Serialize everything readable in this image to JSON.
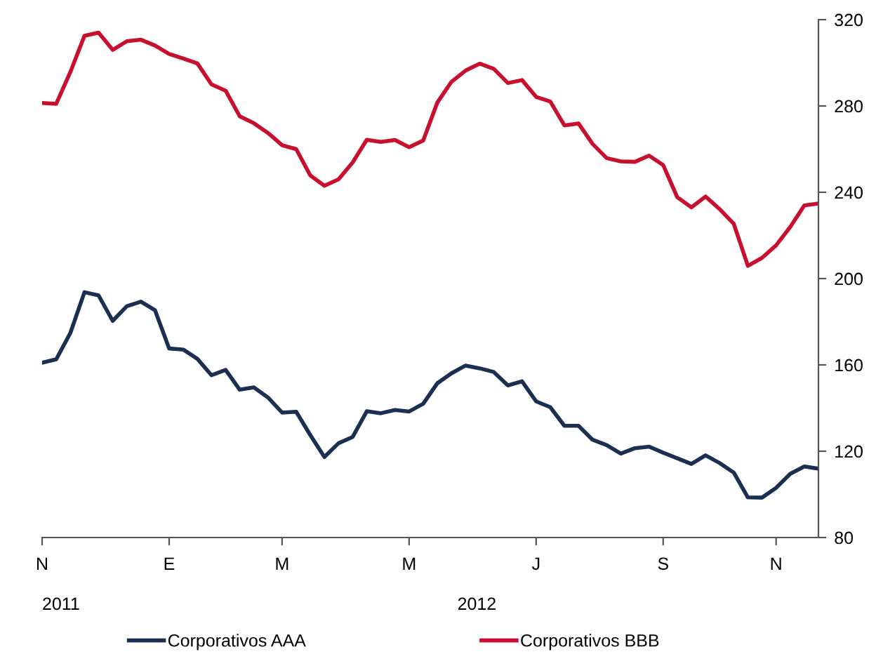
{
  "chart_data": {
    "type": "line",
    "annotations": [
      "2011",
      "2012"
    ],
    "categories": [
      "N",
      null,
      null,
      null,
      null,
      null,
      null,
      null,
      null,
      "E",
      null,
      null,
      null,
      null,
      null,
      null,
      null,
      "M",
      null,
      null,
      null,
      null,
      null,
      null,
      null,
      null,
      "M",
      null,
      null,
      null,
      null,
      null,
      null,
      null,
      null,
      "J",
      null,
      null,
      null,
      null,
      null,
      null,
      null,
      null,
      "S",
      null,
      null,
      null,
      null,
      null,
      null,
      null,
      "N",
      null,
      null,
      null
    ],
    "series": [
      {
        "name": "Corporativos AAA",
        "color": "#1b2f52",
        "values": [
          161,
          162.6,
          174.8,
          193.7,
          192.2,
          180.4,
          187.2,
          189.3,
          185.3,
          167.6,
          167.1,
          162.8,
          155.2,
          157.7,
          148.5,
          149.6,
          144.9,
          137.9,
          138.3,
          127.5,
          117.3,
          123.7,
          126.6,
          138.5,
          137.6,
          139.1,
          138.4,
          142,
          151.5,
          156.1,
          159.7,
          158.4,
          156.7,
          150.5,
          152.4,
          143.1,
          140.4,
          131.8,
          131.8,
          125.3,
          122.8,
          118.9,
          121.4,
          122.1,
          119.3,
          116.7,
          114.1,
          118.1,
          114.5,
          110.1,
          98.6,
          98.5,
          103,
          109.5,
          112.9,
          111.9
        ]
      },
      {
        "name": "Corporativos BBB",
        "color": "#c8102e",
        "values": [
          281.4,
          281,
          295.7,
          312.5,
          314,
          306,
          310,
          310.7,
          308,
          304.1,
          302,
          299.7,
          290,
          287.1,
          275.2,
          272,
          267.5,
          261.8,
          260,
          247.8,
          243,
          246,
          253.8,
          264.3,
          263.3,
          264.2,
          260.9,
          264,
          281.6,
          291.2,
          296.4,
          299.6,
          297.2,
          290.6,
          292,
          284.2,
          282.1,
          271,
          271.9,
          262.4,
          255.8,
          254.3,
          254.1,
          257,
          252.6,
          237.7,
          233,
          238,
          232.2,
          225.4,
          205.9,
          209.6,
          215.4,
          223.9,
          233.9,
          234.8
        ]
      }
    ],
    "ylim": [
      80,
      320
    ],
    "yticks": [
      80,
      120,
      160,
      200,
      240,
      280,
      320
    ],
    "legend": "bottom",
    "grid": false,
    "line_style": "solid",
    "marker": "none"
  }
}
